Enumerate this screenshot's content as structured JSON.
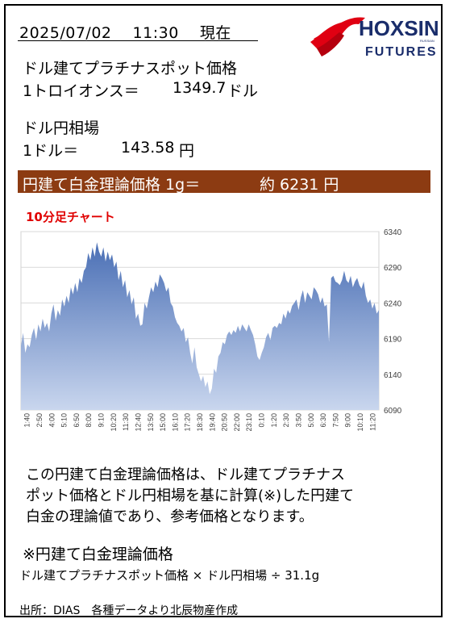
{
  "header": {
    "datetime": "2025/07/02　 11:30　 現在",
    "logo_text": "HOXSIN",
    "logo_subtext": "FUTURES",
    "logo_small": "RUSSIAN"
  },
  "platinum": {
    "title": "ドル建てプラチナスポット価格",
    "unit_label": "1トロイオンス＝",
    "value": "1349.7",
    "unit": "ドル"
  },
  "usdjpy": {
    "title": "ドル円相場",
    "unit_label": "1ドル＝",
    "value": "143.58",
    "unit": "円"
  },
  "theoretical": {
    "label": "円建て白金理論価格 1g＝",
    "approx": "約 6231 円"
  },
  "chart_caption": "10分足チャート",
  "chart_data": {
    "type": "area",
    "title": "10分足チャート",
    "xlabel": "",
    "ylabel": "",
    "ylim": [
      6090,
      6340
    ],
    "yticks": [
      6090,
      6140,
      6190,
      6240,
      6290,
      6340
    ],
    "grid": true,
    "x_tick_labels": [
      "1:40",
      "2:50",
      "4:00",
      "5:10",
      "6:50",
      "8:00",
      "9:10",
      "10:20",
      "11:30",
      "12:40",
      "13:50",
      "15:00",
      "16:10",
      "17:20",
      "18:30",
      "19:40",
      "20:50",
      "22:00",
      "23:10",
      "0:10",
      "1:20",
      "2:30",
      "3:50",
      "5:00",
      "6:30",
      "7:50",
      "9:00",
      "10:10",
      "11:20"
    ],
    "y": [
      6180,
      6198,
      6170,
      6182,
      6178,
      6195,
      6205,
      6188,
      6210,
      6200,
      6218,
      6205,
      6212,
      6200,
      6225,
      6238,
      6215,
      6230,
      6222,
      6245,
      6235,
      6250,
      6240,
      6262,
      6252,
      6268,
      6255,
      6275,
      6268,
      6285,
      6290,
      6310,
      6300,
      6318,
      6305,
      6325,
      6312,
      6305,
      6318,
      6298,
      6312,
      6300,
      6308,
      6290,
      6298,
      6272,
      6285,
      6262,
      6272,
      6248,
      6258,
      6238,
      6248,
      6218,
      6225,
      6208,
      6210,
      6240,
      6232,
      6248,
      6262,
      6255,
      6270,
      6262,
      6280,
      6275,
      6268,
      6256,
      6262,
      6240,
      6235,
      6220,
      6212,
      6208,
      6200,
      6205,
      6185,
      6192,
      6170,
      6155,
      6178,
      6150,
      6140,
      6130,
      6138,
      6122,
      6130,
      6112,
      6120,
      6148,
      6142,
      6165,
      6170,
      6185,
      6182,
      6195,
      6200,
      6195,
      6202,
      6198,
      6208,
      6200,
      6210,
      6205,
      6200,
      6210,
      6202,
      6195,
      6182,
      6165,
      6160,
      6170,
      6178,
      6192,
      6198,
      6188,
      6205,
      6208,
      6205,
      6212,
      6210,
      6225,
      6218,
      6230,
      6225,
      6236,
      6240,
      6245,
      6230,
      6248,
      6258,
      6240,
      6255,
      6250,
      6245,
      6262,
      6258,
      6252,
      6240,
      6248,
      6235,
      6238,
      6185,
      6275,
      6278,
      6270,
      6268,
      6265,
      6272,
      6285,
      6272,
      6268,
      6278,
      6262,
      6270,
      6275,
      6265,
      6260,
      6270,
      6250,
      6240,
      6245,
      6232,
      6240,
      6225,
      6230
    ]
  },
  "description": {
    "line1": "この円建て白金理論価格は、ドル建てプラチナス",
    "line2": "ポット価格とドル円相場を基に計算(※)した円建て",
    "line3": "白金の理論値であり、参考価格となります。"
  },
  "note": {
    "title": "※円建て白金理論価格",
    "formula": "ドル建てプラチナスポット価格 × ドル円相場 ÷ 31.1g"
  },
  "source": "出所：DIAS　各種データより北辰物産作成",
  "colors": {
    "heading_bar": "#8c3b12",
    "caption": "#e00000",
    "area_top": "#4a6fb5",
    "area_bottom": "#c9d6ee"
  }
}
